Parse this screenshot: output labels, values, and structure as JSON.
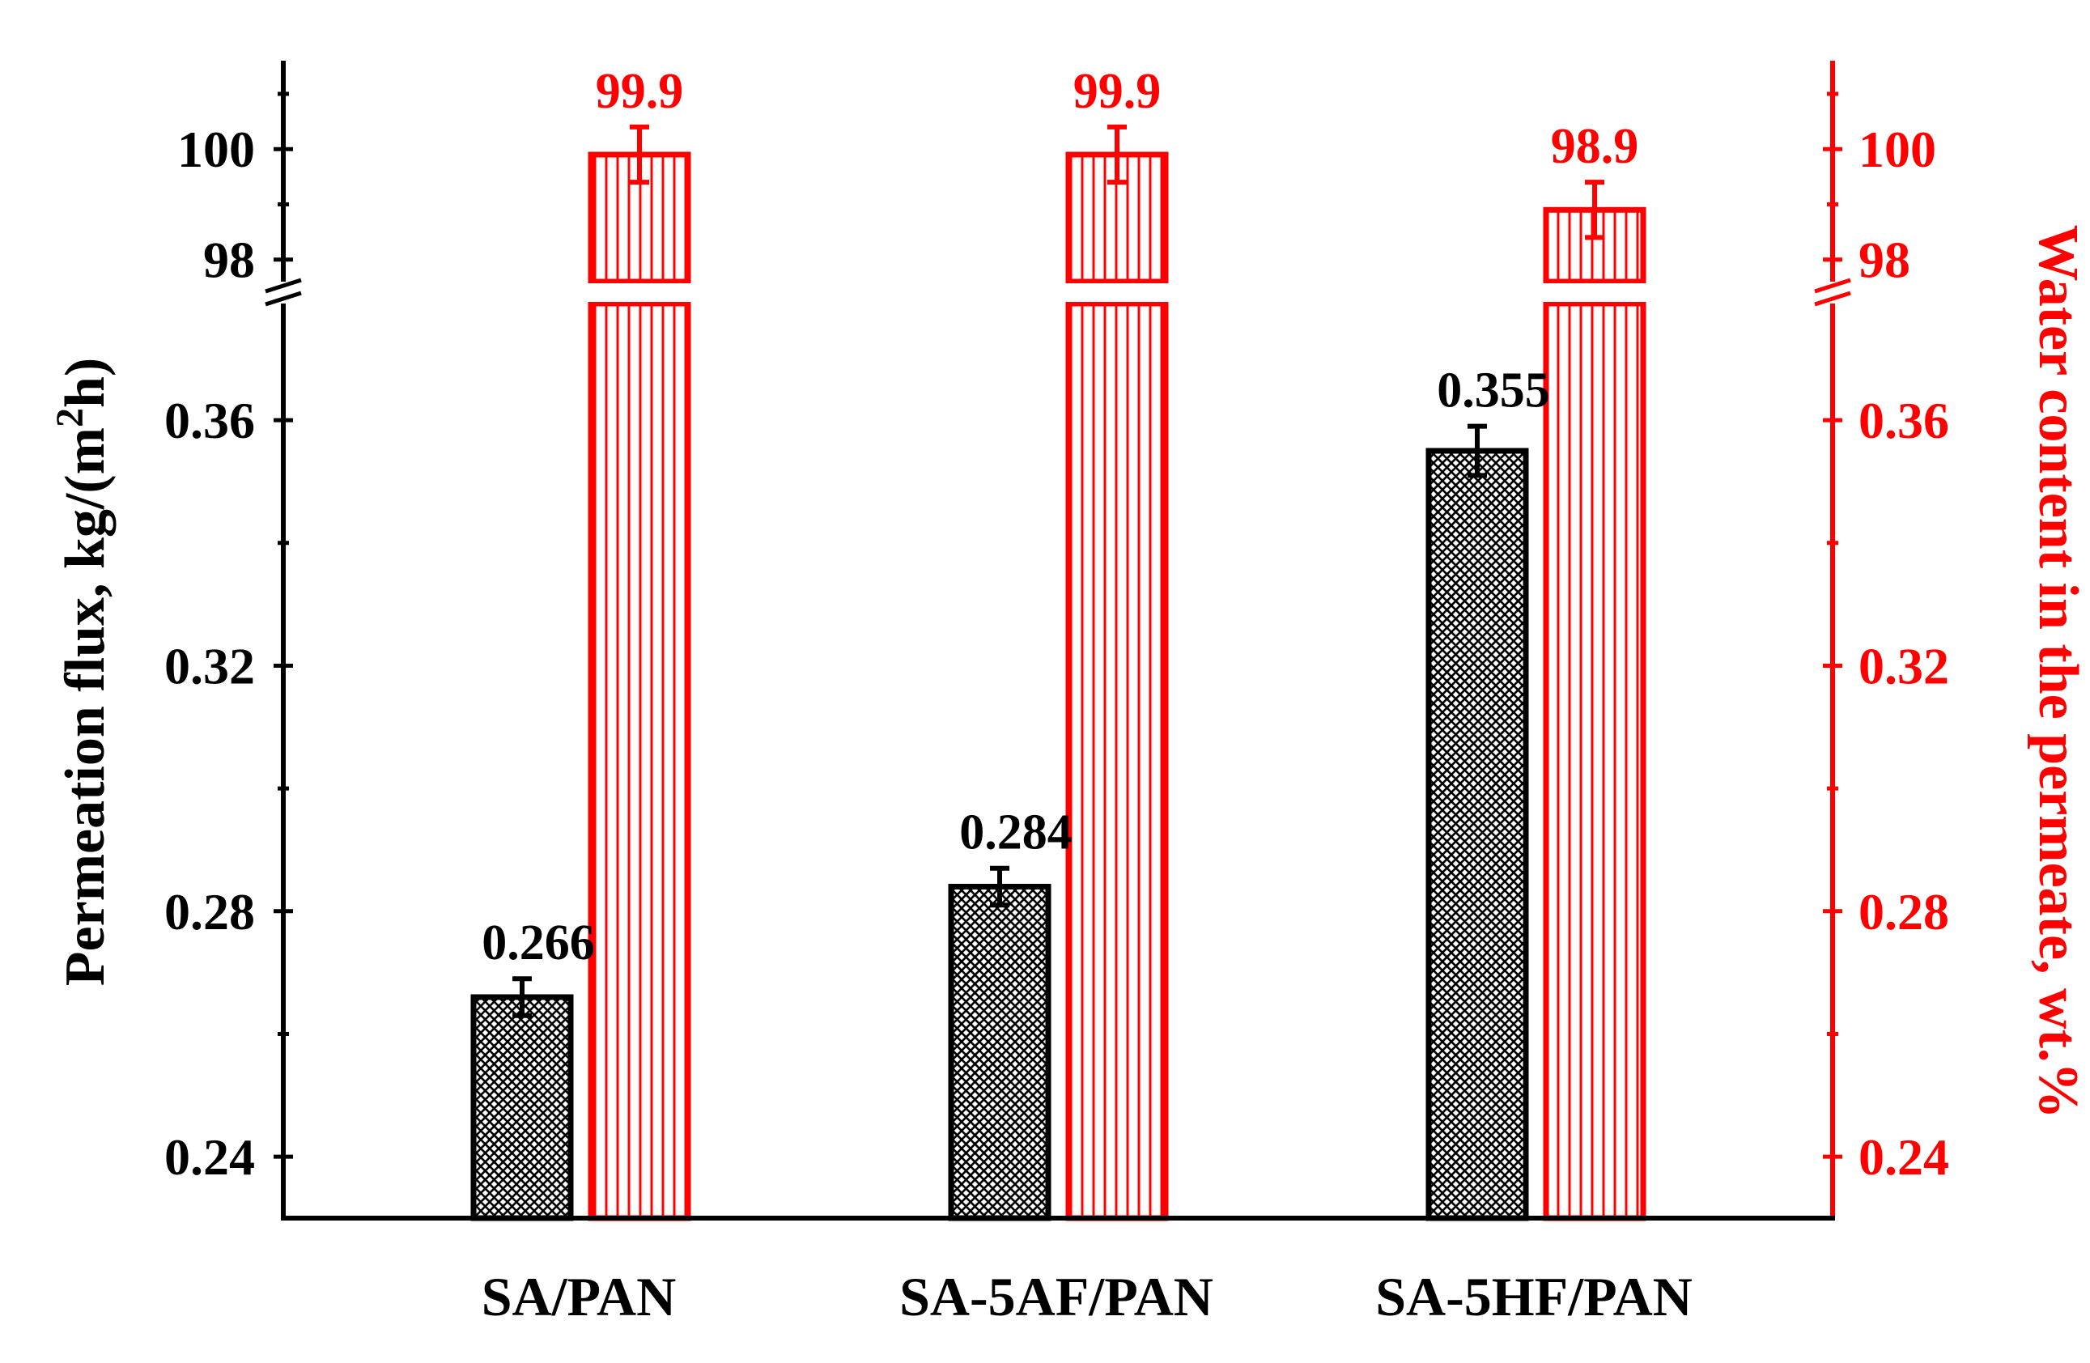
{
  "chart_data": {
    "type": "bar",
    "categories": [
      "SA/PAN",
      "SA-5AF/PAN",
      "SA-5HF/PAN"
    ],
    "series": [
      {
        "name": "",
        "axis": "left",
        "values": [
          0.266,
          0.284,
          0.355
        ],
        "errors": [
          0.003,
          0.003,
          0.004
        ],
        "labels": [
          "0.266",
          "0.284",
          "0.355"
        ],
        "color": "#000000",
        "pattern": "crosshatch"
      },
      {
        "name": "",
        "axis": "right",
        "values": [
          99.9,
          99.9,
          98.9
        ],
        "errors": [
          0.5,
          0.5,
          0.5
        ],
        "labels": [
          "99.9",
          "99.9",
          "98.9"
        ],
        "color": "#ff0000",
        "pattern": "vertical-lines"
      }
    ],
    "left_axis": {
      "label_main": "Permeation flux, kg/(m",
      "label_sup": "2",
      "label_end": "h)",
      "lower_range": [
        0.23,
        0.379
      ],
      "upper_range": [
        97.6,
        101.6
      ],
      "lower_ticks": [
        "0.24",
        "0.28",
        "0.32",
        "0.36"
      ],
      "upper_ticks": [
        "98",
        "100"
      ],
      "color": "#000000"
    },
    "right_axis": {
      "label": "Water content in the permeate, wt.%",
      "lower_ticks": [
        "0.24",
        "0.28",
        "0.32",
        "0.36"
      ],
      "upper_ticks": [
        "98",
        "100"
      ],
      "color": "#ff0000"
    },
    "axis_break": true,
    "grid": false,
    "legend": "none"
  }
}
